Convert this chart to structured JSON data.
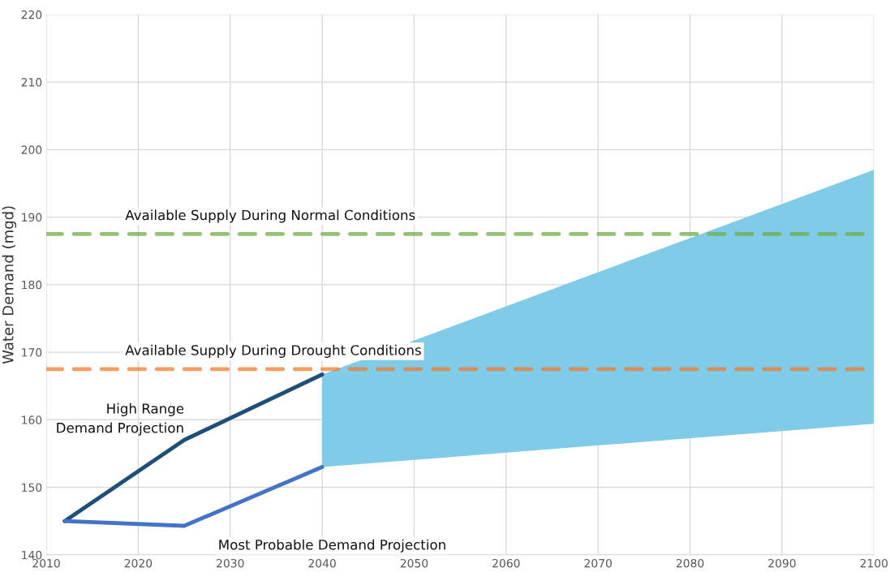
{
  "chart_data": {
    "type": "line",
    "ylabel": "Water Demand (mgd)",
    "xlim": [
      2010,
      2100
    ],
    "xticks": [
      2010,
      2020,
      2030,
      2040,
      2050,
      2060,
      2070,
      2080,
      2090,
      2100
    ],
    "ylim": [
      140,
      220
    ],
    "yticks": [
      140,
      150,
      160,
      170,
      180,
      190,
      200,
      210,
      220
    ],
    "grid": true,
    "series": [
      {
        "color": "#7fcbe8",
        "x": [
          2040,
          2100
        ],
        "values": [
          null,
          null
        ],
        "lower": [
          153,
          159.4
        ],
        "upper": [
          166.7,
          197
        ]
      },
      {
        "name": "High Range\nDemand Projection",
        "color": "#1f4e79",
        "x": [
          2012,
          2025,
          2040
        ],
        "values": [
          145,
          157,
          166.7
        ]
      },
      {
        "name": "Most Probable Demand Projection",
        "color": "#4472c4",
        "x": [
          2012,
          2025,
          2040
        ],
        "values": [
          145,
          144.3,
          153
        ]
      }
    ],
    "ref_lines": [
      {
        "axis": "y",
        "value": 187.5,
        "label": "Available Supply During Normal Conditions",
        "color": "#70ad47",
        "line_style": "dashed"
      },
      {
        "axis": "y",
        "value": 167.5,
        "label": "Available Supply During Drought Conditions",
        "color": "#ed7d31",
        "line_style": "dashed"
      }
    ]
  }
}
